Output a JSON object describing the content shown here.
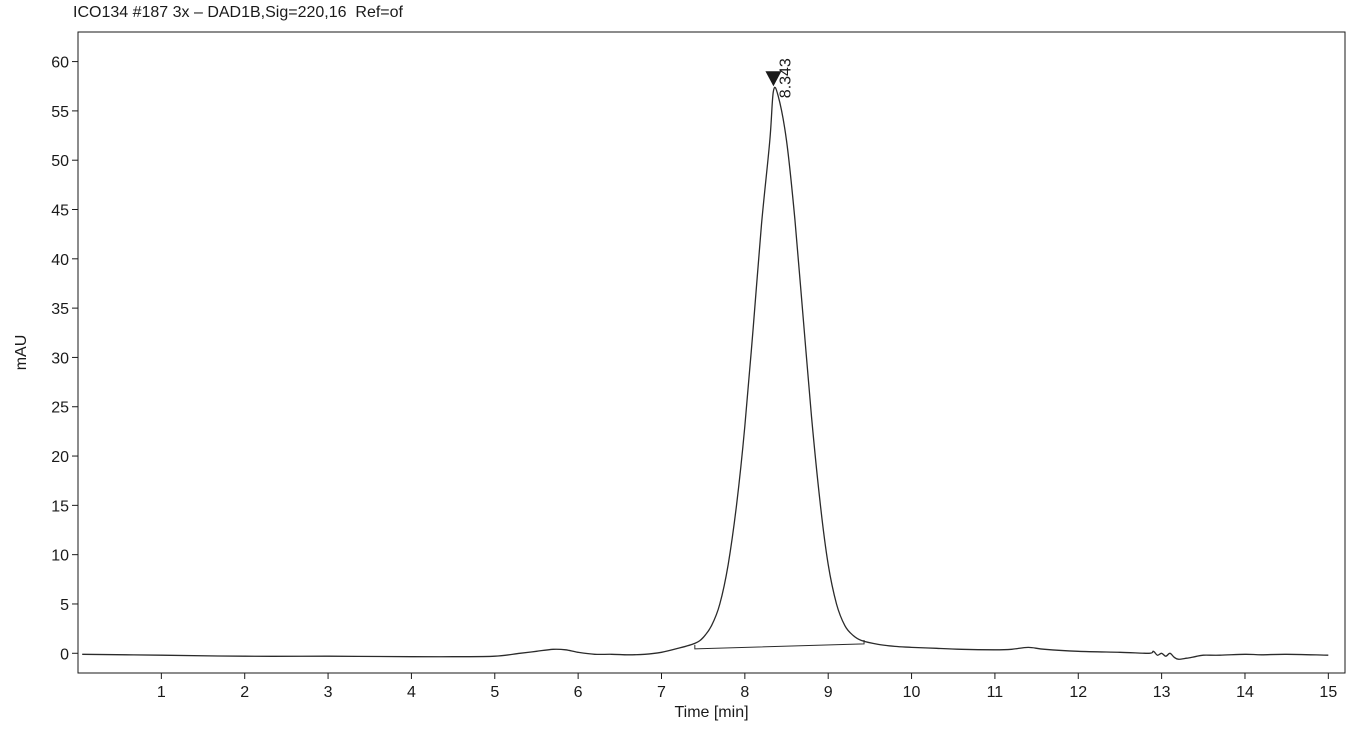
{
  "chart_data": {
    "type": "line",
    "title": "ICO134 #187 3x – DAD1B,Sig=220,16  Ref=of",
    "xlabel": "Time [min]",
    "ylabel": "mAU",
    "xlim": [
      0,
      15.2
    ],
    "ylim": [
      -2,
      63
    ],
    "x_ticks": [
      1,
      2,
      3,
      4,
      5,
      6,
      7,
      8,
      9,
      10,
      11,
      12,
      13,
      14,
      15
    ],
    "y_ticks": [
      0,
      5,
      10,
      15,
      20,
      25,
      30,
      35,
      40,
      45,
      50,
      55,
      60
    ],
    "grid": false,
    "line_color": "#2b2b2b",
    "series": [
      {
        "x": [
          0.05,
          1.0,
          2.0,
          3.0,
          4.0,
          4.5,
          5.0,
          5.3,
          5.5,
          5.7,
          5.85,
          6.0,
          6.2,
          6.4,
          6.6,
          6.8,
          7.0,
          7.2,
          7.4,
          7.5,
          7.6,
          7.7,
          7.8,
          7.9,
          8.0,
          8.1,
          8.2,
          8.3,
          8.343,
          8.4,
          8.5,
          8.6,
          8.7,
          8.8,
          8.9,
          9.0,
          9.1,
          9.2,
          9.3,
          9.4,
          9.6,
          9.8,
          10.0,
          10.3,
          10.6,
          11.0,
          11.2,
          11.4,
          11.6,
          12.0,
          12.5,
          12.85,
          12.9,
          12.95,
          13.0,
          13.05,
          13.1,
          13.15,
          13.2,
          13.3,
          13.4,
          13.5,
          13.7,
          14.0,
          14.2,
          14.5,
          15.0
        ],
        "y": [
          -0.1,
          -0.2,
          -0.3,
          -0.3,
          -0.35,
          -0.35,
          -0.3,
          0.0,
          0.2,
          0.4,
          0.35,
          0.1,
          -0.1,
          -0.1,
          -0.15,
          -0.1,
          0.1,
          0.5,
          1.0,
          1.6,
          2.8,
          5.0,
          9.0,
          15.0,
          23.0,
          33.0,
          43.5,
          52.0,
          57.0,
          56.5,
          52.0,
          44.0,
          34.0,
          24.0,
          15.5,
          9.0,
          5.0,
          2.8,
          1.8,
          1.3,
          0.9,
          0.7,
          0.6,
          0.5,
          0.4,
          0.35,
          0.4,
          0.6,
          0.4,
          0.2,
          0.1,
          0.0,
          0.2,
          -0.2,
          0.0,
          -0.3,
          0.0,
          -0.4,
          -0.6,
          -0.5,
          -0.35,
          -0.2,
          -0.2,
          -0.1,
          -0.15,
          -0.1,
          -0.2
        ]
      }
    ],
    "baseline": {
      "x": [
        7.4,
        9.43
      ],
      "y": [
        0.45,
        0.95
      ]
    },
    "peak": {
      "x": 8.343,
      "y": 57.3,
      "label": "8.343"
    }
  }
}
